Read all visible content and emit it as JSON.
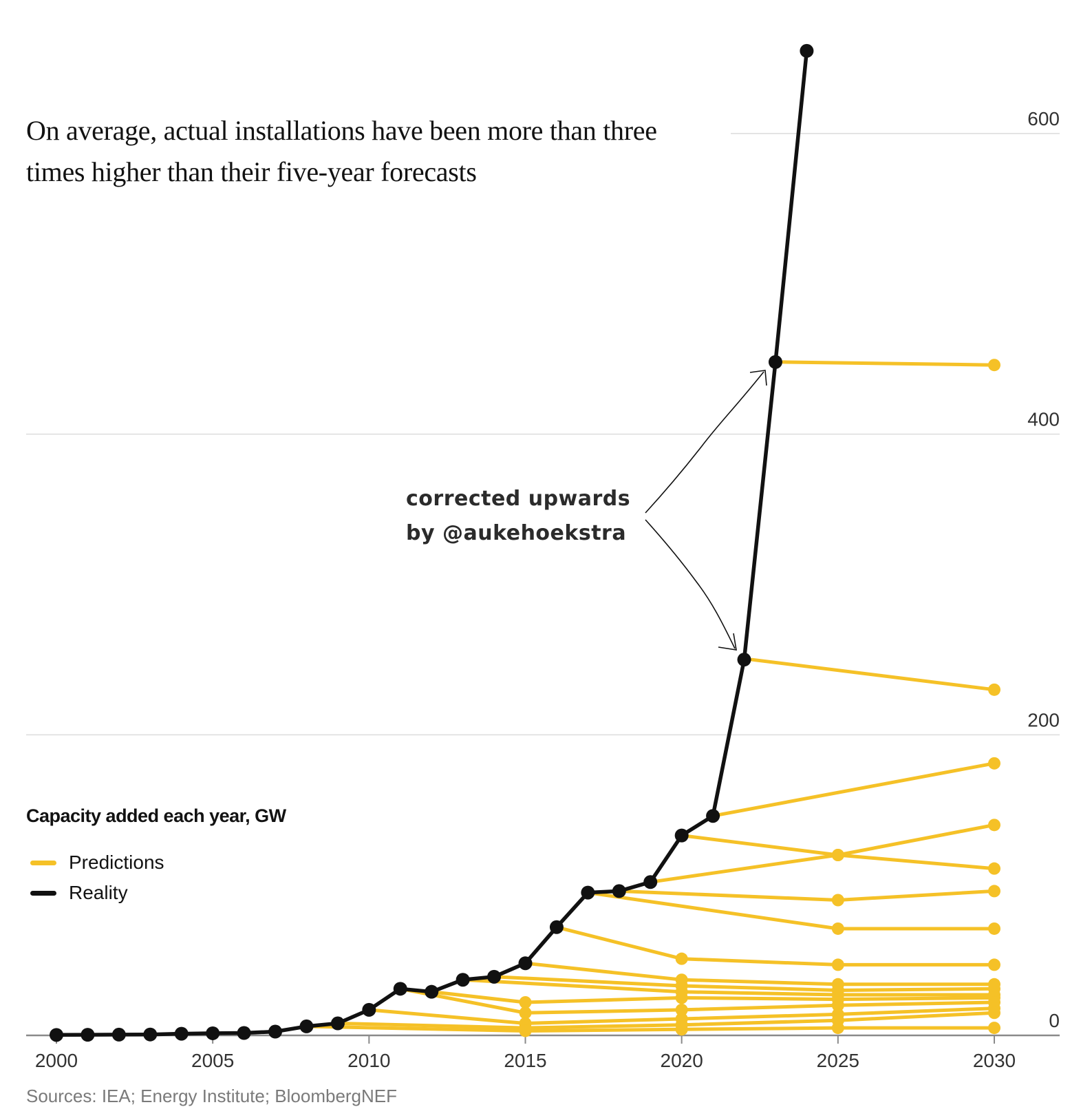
{
  "title": "On average, actual installations have been more than three times higher than their five-year forecasts",
  "legend": {
    "title": "Capacity added each year, GW",
    "items": [
      {
        "label": "Predictions",
        "color": "#F5C127"
      },
      {
        "label": "Reality",
        "color": "#111111"
      }
    ]
  },
  "annotation": {
    "line1": "corrected upwards",
    "line2": "by @aukehoekstra"
  },
  "source": "Sources: IEA; Energy Institute; BloombergNEF",
  "chart_data": {
    "type": "line",
    "title": "On average, actual installations have been more than three times higher than their five-year forecasts",
    "ylabel": "Capacity added each year, GW",
    "xlim": [
      2000,
      2030
    ],
    "ylim": [
      0,
      600
    ],
    "x_ticks": [
      2000,
      2005,
      2010,
      2015,
      2020,
      2025,
      2030
    ],
    "y_ticks": [
      0,
      200,
      400,
      600
    ],
    "grid": "horizontal",
    "legend_position": "left",
    "colors": {
      "predictions": "#F5C127",
      "reality": "#111111"
    },
    "series": [
      {
        "name": "Reality",
        "x": [
          2000,
          2001,
          2002,
          2003,
          2004,
          2005,
          2006,
          2007,
          2008,
          2009,
          2010,
          2011,
          2012,
          2013,
          2014,
          2015,
          2016,
          2017,
          2018,
          2019,
          2020,
          2021,
          2022,
          2023,
          2024
        ],
        "y": [
          0.3,
          0.4,
          0.5,
          0.6,
          1.1,
          1.4,
          1.6,
          2.5,
          6,
          8,
          17,
          31,
          29,
          37,
          39,
          48,
          72,
          95,
          96,
          102,
          133,
          146,
          250,
          448,
          655
        ]
      }
    ],
    "predictions": [
      {
        "x": [
          2022.25,
          2030
        ],
        "y": [
          250,
          230
        ]
      },
      {
        "x": [
          2023.25,
          2030
        ],
        "y": [
          448,
          446
        ]
      },
      {
        "x": [
          2021,
          2030
        ],
        "y": [
          146,
          181
        ]
      },
      {
        "x": [
          2020,
          2025,
          2030
        ],
        "y": [
          133,
          120,
          111
        ]
      },
      {
        "x": [
          2019,
          2025,
          2030
        ],
        "y": [
          102,
          120,
          140
        ]
      },
      {
        "x": [
          2018,
          2025,
          2030
        ],
        "y": [
          96,
          90,
          96
        ]
      },
      {
        "x": [
          2017,
          2025,
          2030
        ],
        "y": [
          95,
          71,
          71
        ]
      },
      {
        "x": [
          2016,
          2020,
          2025,
          2030
        ],
        "y": [
          72,
          51,
          47,
          47
        ]
      },
      {
        "x": [
          2015,
          2020,
          2025,
          2030
        ],
        "y": [
          48,
          37,
          34,
          34
        ]
      },
      {
        "x": [
          2014,
          2020,
          2025,
          2030
        ],
        "y": [
          39,
          33,
          30,
          31
        ]
      },
      {
        "x": [
          2013,
          2020,
          2025,
          2030
        ],
        "y": [
          37,
          29,
          27,
          27
        ]
      },
      {
        "x": [
          2012,
          2015,
          2020,
          2025,
          2030
        ],
        "y": [
          29,
          22,
          25,
          24,
          25
        ]
      },
      {
        "x": [
          2011,
          2015,
          2020,
          2025,
          2030
        ],
        "y": [
          31,
          15,
          17,
          20,
          22
        ]
      },
      {
        "x": [
          2010,
          2015,
          2020,
          2025,
          2030
        ],
        "y": [
          17,
          8,
          11,
          14,
          18
        ]
      },
      {
        "x": [
          2009,
          2015,
          2020,
          2025,
          2030
        ],
        "y": [
          8,
          5,
          7,
          10,
          15
        ]
      },
      {
        "x": [
          2008,
          2015,
          2020,
          2025,
          2030
        ],
        "y": [
          6,
          3,
          4,
          5,
          5
        ]
      }
    ]
  }
}
